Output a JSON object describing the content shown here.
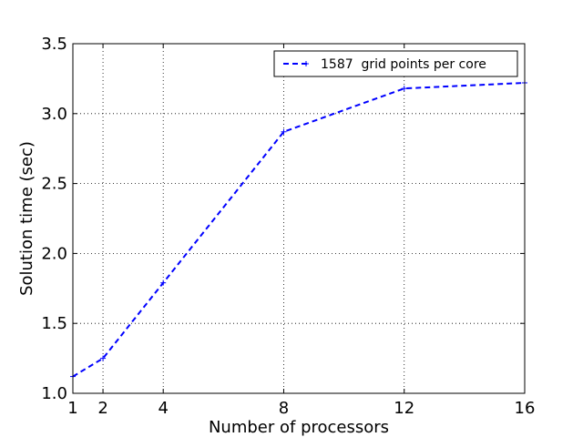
{
  "chart_data": {
    "type": "line",
    "title": "",
    "xlabel": "Number of processors",
    "ylabel": "Solution time (sec)",
    "xlim": [
      1,
      16
    ],
    "ylim": [
      1.0,
      3.5
    ],
    "xticks": [
      1,
      2,
      4,
      8,
      12,
      16
    ],
    "yticks": [
      "1.0",
      "1.5",
      "2.0",
      "2.5",
      "3.0",
      "3.5"
    ],
    "grid": true,
    "legend_position": "top-right",
    "series": [
      {
        "name": "1587  grid points per core",
        "color": "#0000ff",
        "line_style": "dashed",
        "x": [
          1,
          2,
          4,
          8,
          12,
          16
        ],
        "y": [
          1.12,
          1.25,
          1.79,
          2.87,
          3.18,
          3.22
        ]
      }
    ]
  }
}
